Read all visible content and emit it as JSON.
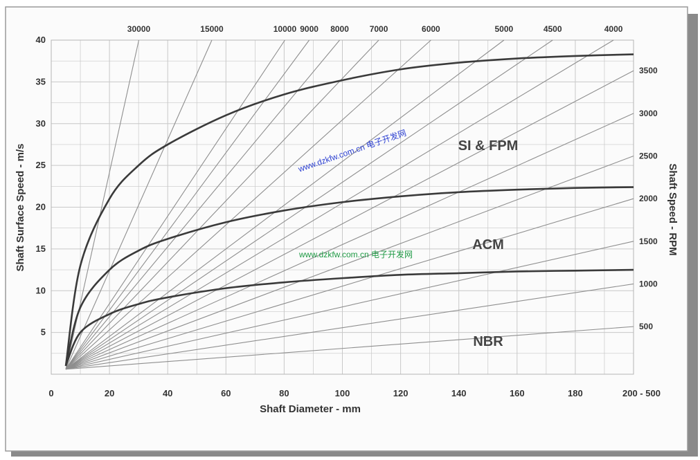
{
  "chart_data": {
    "type": "line",
    "xlabel": "Shaft Diameter - mm",
    "ylabel": "Shaft Surface Speed - m/s",
    "y2label": "Shaft Speed - RPM",
    "xlim": [
      0,
      200
    ],
    "ylim": [
      0,
      40
    ],
    "x_tick_labels": [
      "0",
      "20",
      "40",
      "60",
      "80",
      "100",
      "120",
      "140",
      "160",
      "180",
      "200 - 500"
    ],
    "y_tick_labels": [
      "5",
      "10",
      "15",
      "20",
      "25",
      "30",
      "35",
      "40"
    ],
    "rpm_lines": [
      {
        "label": "30000",
        "rpm": 30000,
        "label_pos": "top"
      },
      {
        "label": "15000",
        "rpm": 15000,
        "label_pos": "top"
      },
      {
        "label": "10000",
        "rpm": 10000,
        "label_pos": "top"
      },
      {
        "label": "9000",
        "rpm": 9000,
        "label_pos": "top"
      },
      {
        "label": "8000",
        "rpm": 8000,
        "label_pos": "top"
      },
      {
        "label": "7000",
        "rpm": 7000,
        "label_pos": "top"
      },
      {
        "label": "6000",
        "rpm": 6000,
        "label_pos": "top"
      },
      {
        "label": "5000",
        "rpm": 5000,
        "label_pos": "top"
      },
      {
        "label": "4500",
        "rpm": 4500,
        "label_pos": "top"
      },
      {
        "label": "4000",
        "rpm": 4000,
        "label_pos": "top"
      },
      {
        "label": "3500",
        "rpm": 3500,
        "label_pos": "right"
      },
      {
        "label": "3000",
        "rpm": 3000,
        "label_pos": "right"
      },
      {
        "label": "2500",
        "rpm": 2500,
        "label_pos": "right"
      },
      {
        "label": "2000",
        "rpm": 2000,
        "label_pos": "right"
      },
      {
        "label": "1500",
        "rpm": 1500,
        "label_pos": "right"
      },
      {
        "label": "1000",
        "rpm": 1000,
        "label_pos": "right"
      },
      {
        "label": "500",
        "rpm": 500,
        "label_pos": "right"
      }
    ],
    "series": [
      {
        "name": "SI & FPM",
        "x": [
          5,
          10,
          20,
          30,
          40,
          60,
          80,
          100,
          120,
          140,
          160,
          180,
          200
        ],
        "y": [
          1,
          13,
          21,
          25,
          27.5,
          31,
          33.5,
          35.2,
          36.5,
          37.3,
          37.8,
          38.1,
          38.3
        ]
      },
      {
        "name": "ACM",
        "x": [
          5,
          10,
          20,
          30,
          40,
          60,
          80,
          100,
          120,
          140,
          160,
          180,
          200
        ],
        "y": [
          1,
          8,
          12.5,
          14.8,
          16.2,
          18.2,
          19.6,
          20.6,
          21.3,
          21.8,
          22.1,
          22.3,
          22.4
        ]
      },
      {
        "name": "NBR",
        "x": [
          5,
          10,
          20,
          30,
          40,
          60,
          80,
          100,
          120,
          140,
          160,
          180,
          200
        ],
        "y": [
          1,
          5,
          7.2,
          8.4,
          9.2,
          10.3,
          11,
          11.5,
          11.9,
          12.1,
          12.3,
          12.4,
          12.5
        ]
      }
    ],
    "curve_labels": [
      "SI & FPM",
      "ACM",
      "NBR"
    ],
    "watermark": [
      "www.dzkfw.com.cn 电子开发网",
      "www.dzkfw.com.cn 电子开发网"
    ],
    "grid": true
  }
}
